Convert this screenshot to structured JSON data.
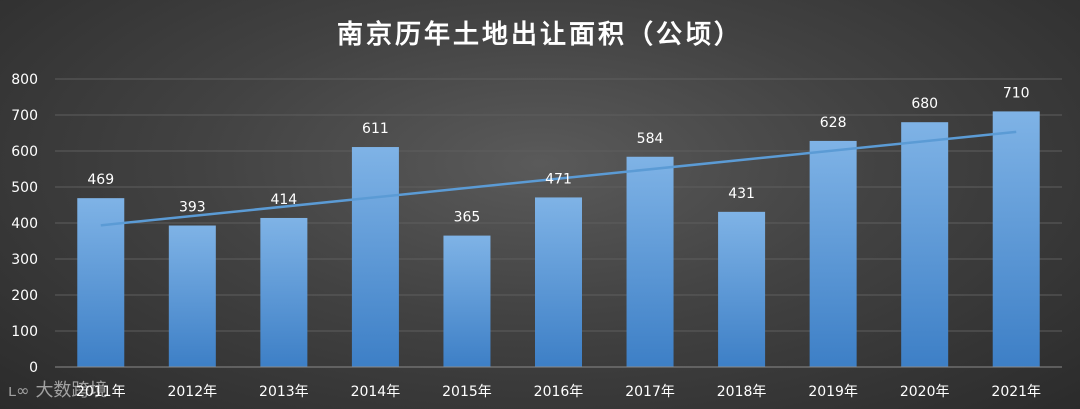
{
  "chart_data": {
    "type": "bar",
    "title": "南京历年土地出让面积（公顷）",
    "categories": [
      "2011年",
      "2012年",
      "2013年",
      "2014年",
      "2015年",
      "2016年",
      "2017年",
      "2018年",
      "2019年",
      "2020年",
      "2021年"
    ],
    "values": [
      469,
      393,
      414,
      611,
      365,
      471,
      584,
      431,
      628,
      680,
      710
    ],
    "ylim": [
      0,
      800
    ],
    "yticks": [
      0,
      100,
      200,
      300,
      400,
      500,
      600,
      700,
      800
    ],
    "trendline": {
      "type": "linear",
      "color": "#5b9bd5"
    },
    "grid": true,
    "bar_color": "#5b9bd5",
    "xlabel": "",
    "ylabel": ""
  },
  "watermark": {
    "text": "大数跨境"
  },
  "colors": {
    "background": "#3a3a3a",
    "bar_top": "#7fb3e6",
    "bar_bottom": "#3d7fc6",
    "text": "#ffffff",
    "grid": "#5e5e5e"
  }
}
